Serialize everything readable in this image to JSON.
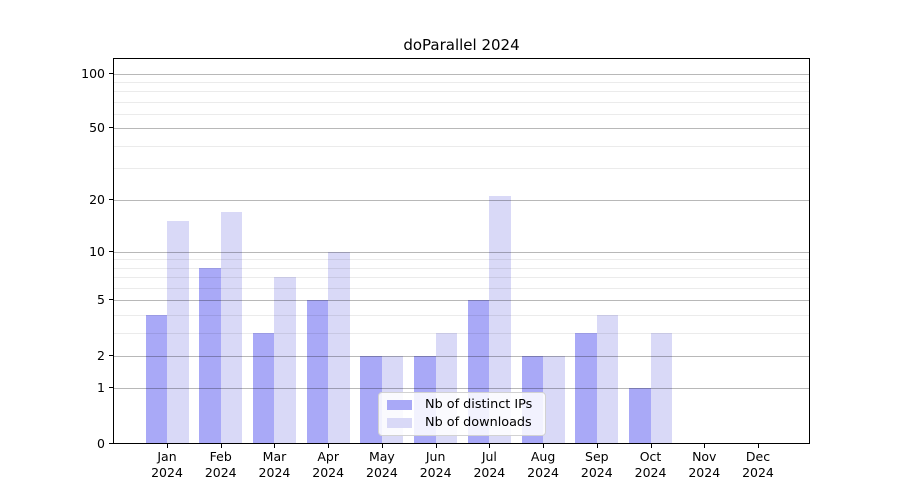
{
  "chart_data": {
    "type": "bar",
    "title": "doParallel 2024",
    "categories": [
      "Jan 2024",
      "Feb 2024",
      "Mar 2024",
      "Apr 2024",
      "May 2024",
      "Jun 2024",
      "Jul 2024",
      "Aug 2024",
      "Sep 2024",
      "Oct 2024",
      "Nov 2024",
      "Dec 2024"
    ],
    "series": [
      {
        "name": "Nb of distinct IPs",
        "color": "#a9a9f7",
        "values": [
          4,
          8,
          3,
          5,
          2,
          2,
          5,
          2,
          3,
          1,
          0,
          0
        ]
      },
      {
        "name": "Nb of downloads",
        "color": "#d9d9f7",
        "values": [
          15,
          17,
          7,
          10,
          2,
          3,
          21,
          2,
          4,
          3,
          0,
          0
        ]
      }
    ],
    "xlabel": "",
    "ylabel": "",
    "yscale": "log10(value+1)",
    "yticks": [
      0,
      1,
      2,
      5,
      10,
      20,
      50,
      100
    ],
    "yticks_minor": [
      3,
      4,
      6,
      7,
      8,
      9,
      30,
      40,
      60,
      70,
      80,
      90
    ],
    "ylim": [
      0,
      120
    ],
    "grid": "horizontal, major and minor, drawn over bars",
    "legend_position": "lower center inside plot"
  }
}
